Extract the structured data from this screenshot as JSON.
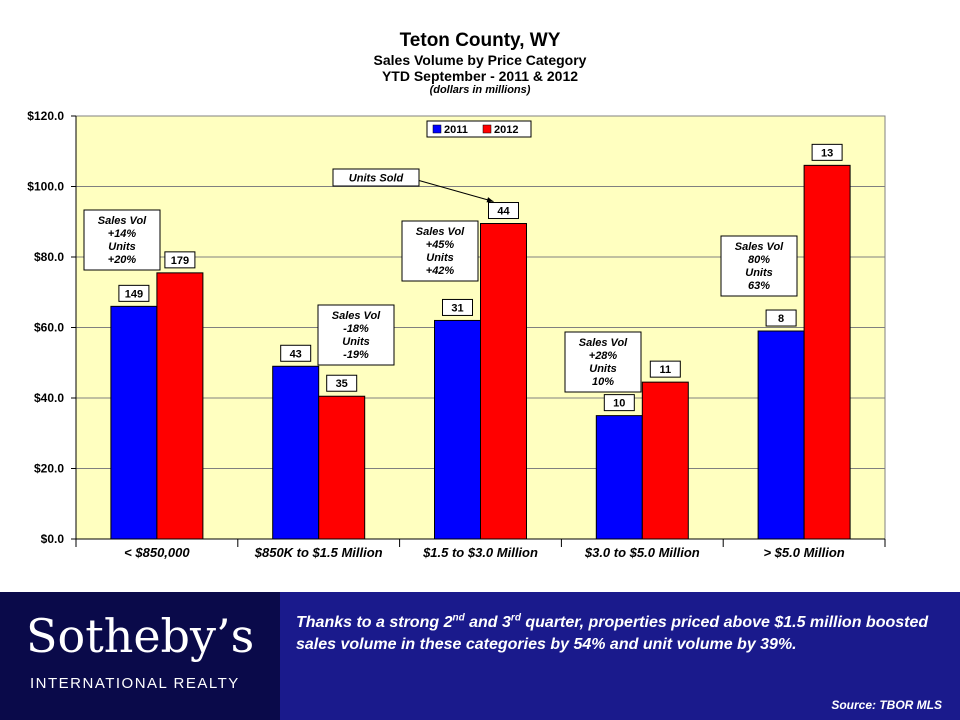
{
  "chart_data": {
    "type": "bar",
    "title": "Teton County, WY",
    "subtitle": [
      "Sales Volume by Price Category",
      "YTD September - 2011 & 2012"
    ],
    "note": "(dollars in millions)",
    "categories": [
      "< $850,000",
      "$850K to $1.5 Million",
      "$1.5 to $3.0 Million",
      "$3.0 to $5.0 Million",
      "> $5.0 Million"
    ],
    "series": [
      {
        "name": "2011",
        "color": "#0000ff",
        "values": [
          66,
          49,
          62,
          35,
          59
        ],
        "units": [
          "149",
          "43",
          "31",
          "10",
          "8"
        ]
      },
      {
        "name": "2012",
        "color": "#ff0000",
        "values": [
          75.5,
          40.5,
          89.5,
          44.5,
          106
        ],
        "units": [
          "179",
          "35",
          "44",
          "11",
          "13"
        ]
      }
    ],
    "ylim": [
      0,
      120
    ],
    "yticks": [
      0,
      20,
      40,
      60,
      80,
      100,
      120
    ],
    "ytick_labels": [
      "$0.0",
      "$20.0",
      "$40.0",
      "$60.0",
      "$80.0",
      "$100.0",
      "$120.0"
    ],
    "grid": true,
    "legend": "top-center",
    "plot_background": "#ffffc0",
    "annotations": [
      {
        "category_index": 0,
        "lines": [
          "Sales Vol",
          "+14%",
          "Units",
          "+20%"
        ]
      },
      {
        "category_index": 1,
        "lines": [
          "Sales Vol",
          "-18%",
          "Units",
          "-19%"
        ]
      },
      {
        "category_index": 2,
        "lines": [
          "Sales Vol",
          "+45%",
          "Units",
          "+42%"
        ]
      },
      {
        "category_index": 3,
        "lines": [
          "Sales Vol",
          "+28%",
          "Units",
          "10%"
        ]
      },
      {
        "category_index": 4,
        "lines": [
          "Sales Vol",
          "80%",
          "Units",
          "63%"
        ]
      }
    ],
    "callout": {
      "text": "Units Sold",
      "points_to": "2012 units label, $1.5 to $3.0 Million"
    }
  },
  "footer": {
    "logo_text": "Sotheby’s",
    "logo_subtext": "INTERNATIONAL REALTY",
    "message_part1": "Thanks to a strong 2",
    "sup1": "nd",
    "message_part2": "  and 3",
    "sup2": "rd",
    "message_part3": " quarter, properties priced above $1.5 million boosted sales volume in these categories by 54% and unit volume by 39%.",
    "source": "Source: TBOR MLS"
  }
}
